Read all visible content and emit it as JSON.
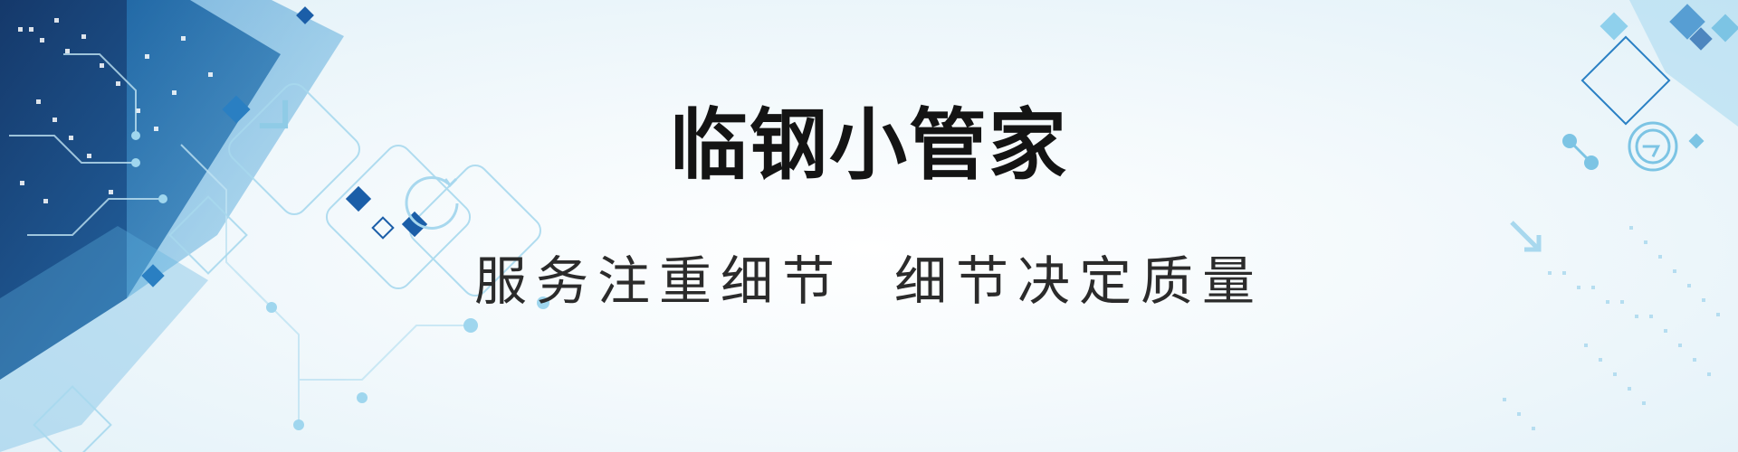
{
  "banner": {
    "title": "临钢小管家",
    "slogan_part1": "服务注重细节",
    "slogan_part2": "细节决定质量"
  },
  "colors": {
    "title": "#141414",
    "slogan": "#2b2b2b",
    "accent_dark": "#0b3f7a",
    "accent_mid": "#1f6fb5",
    "accent_light": "#7cc4e4"
  }
}
